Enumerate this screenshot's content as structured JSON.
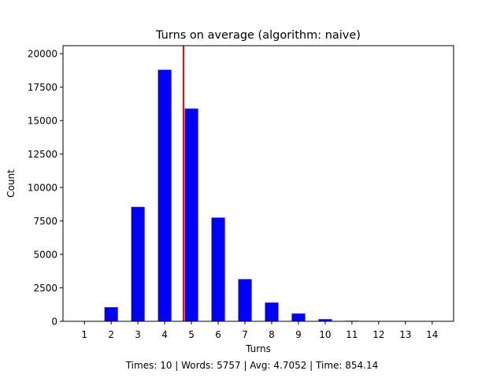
{
  "chart_data": {
    "type": "bar",
    "title": "Turns on average (algorithm: naive)",
    "xlabel": "Turns",
    "ylabel": "Count",
    "categories": [
      "1",
      "2",
      "3",
      "4",
      "5",
      "6",
      "7",
      "8",
      "9",
      "10",
      "11",
      "12",
      "13",
      "14"
    ],
    "values": [
      0,
      1050,
      8550,
      18800,
      15900,
      7750,
      3150,
      1400,
      580,
      160,
      40,
      5,
      2,
      1
    ],
    "ylim": [
      0,
      20600
    ],
    "yticks": [
      0,
      2500,
      5000,
      7500,
      10000,
      12500,
      15000,
      17500,
      20000
    ],
    "ytick_labels": [
      "0",
      "2500",
      "5000",
      "7500",
      "10000",
      "12500",
      "15000",
      "17500",
      "20000"
    ],
    "xlim": [
      0.2,
      14.8
    ],
    "bar_color": "#0000ff",
    "average_line": {
      "x": 4.7052,
      "color": "#ff0000"
    },
    "grid": false,
    "legend": "none"
  },
  "footer": "Times: 10 | Words: 5757 | Avg: 4.7052 | Time: 854.14"
}
